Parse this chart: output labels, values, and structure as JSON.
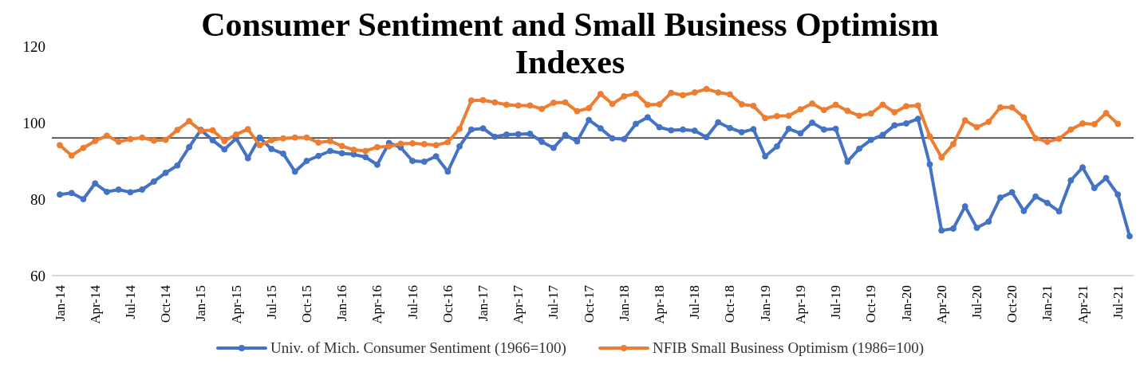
{
  "chart_data": {
    "type": "line",
    "title": "Consumer Sentiment and Small Business Optimism Indexes",
    "categories": [
      "Jan-14",
      null,
      null,
      "Apr-14",
      null,
      null,
      "Jul-14",
      null,
      null,
      "Oct-14",
      null,
      null,
      "Jan-15",
      null,
      null,
      "Apr-15",
      null,
      null,
      "Jul-15",
      null,
      null,
      "Oct-15",
      null,
      null,
      "Jan-16",
      null,
      null,
      "Apr-16",
      null,
      null,
      "Jul-16",
      null,
      null,
      "Oct-16",
      null,
      null,
      "Jan-17",
      null,
      null,
      "Apr-17",
      null,
      null,
      "Jul-17",
      null,
      null,
      "Oct-17",
      null,
      null,
      "Jan-18",
      null,
      null,
      "Apr-18",
      null,
      null,
      "Jul-18",
      null,
      null,
      "Oct-18",
      null,
      null,
      "Jan-19",
      null,
      null,
      "Apr-19",
      null,
      null,
      "Jul-19",
      null,
      null,
      "Oct-19",
      null,
      null,
      "Jan-20",
      null,
      null,
      "Apr-20",
      null,
      null,
      "Jul-20",
      null,
      null,
      "Oct-20",
      null,
      null,
      "Jan-21",
      null,
      null,
      "Apr-21",
      null,
      null,
      "Jul-21",
      null
    ],
    "series": [
      {
        "name": "Univ. of Mich. Consumer Sentiment (1966=100)",
        "color": "#4472c4",
        "values": [
          81.2,
          81.6,
          80.0,
          84.1,
          81.9,
          82.5,
          81.8,
          82.5,
          84.6,
          86.9,
          88.8,
          93.6,
          98.1,
          95.4,
          93.0,
          95.9,
          90.7,
          96.1,
          93.1,
          91.9,
          87.2,
          90.0,
          91.3,
          92.6,
          92.0,
          91.7,
          91.0,
          89.0,
          94.7,
          93.5,
          90.0,
          89.8,
          91.2,
          87.2,
          93.8,
          98.2,
          98.5,
          96.3,
          96.9,
          97.0,
          97.1,
          95.0,
          93.4,
          96.8,
          95.1,
          100.7,
          98.5,
          95.9,
          95.7,
          99.7,
          101.4,
          98.8,
          98.0,
          98.2,
          97.9,
          96.2,
          100.1,
          98.6,
          97.5,
          98.3,
          91.2,
          93.8,
          98.4,
          97.2,
          100.0,
          98.2,
          98.4,
          89.8,
          93.2,
          95.5,
          96.8,
          99.3,
          99.8,
          101.0,
          89.1,
          71.8,
          72.3,
          78.1,
          72.5,
          74.1,
          80.4,
          81.8,
          76.9,
          80.7,
          79.0,
          76.8,
          84.9,
          88.3,
          82.9,
          85.5,
          81.2,
          70.3
        ]
      },
      {
        "name": "NFIB Small Business Optimism (1986=100)",
        "color": "#ed7d31",
        "values": [
          94.1,
          91.4,
          93.4,
          95.2,
          96.6,
          95.0,
          95.7,
          96.1,
          95.3,
          95.5,
          98.1,
          100.4,
          97.9,
          98.0,
          95.2,
          96.9,
          98.3,
          94.1,
          95.4,
          95.9,
          96.1,
          96.1,
          94.8,
          95.2,
          93.9,
          92.9,
          92.6,
          93.6,
          93.8,
          94.5,
          94.6,
          94.4,
          94.1,
          94.9,
          98.4,
          105.8,
          105.9,
          105.3,
          104.7,
          104.5,
          104.5,
          103.6,
          105.2,
          105.3,
          103.0,
          103.8,
          107.5,
          104.9,
          106.9,
          107.6,
          104.7,
          104.8,
          107.8,
          107.2,
          107.9,
          108.8,
          107.9,
          107.4,
          104.8,
          104.4,
          101.2,
          101.7,
          101.8,
          103.5,
          105.0,
          103.3,
          104.7,
          103.1,
          101.8,
          102.4,
          104.7,
          102.7,
          104.3,
          104.5,
          96.4,
          90.9,
          94.4,
          100.6,
          98.8,
          100.2,
          104.0,
          104.0,
          101.4,
          95.9,
          95.0,
          95.8,
          98.2,
          99.8,
          99.6,
          102.5,
          99.7,
          null
        ]
      }
    ],
    "ylim": [
      60,
      120
    ],
    "yticks": [
      60,
      80,
      100,
      120
    ],
    "grid": false,
    "legend": "bottom",
    "marker": "circle",
    "line_style": "solid",
    "ref_lines": [
      {
        "axis": "y",
        "value": 96,
        "color": "#000000"
      }
    ]
  }
}
